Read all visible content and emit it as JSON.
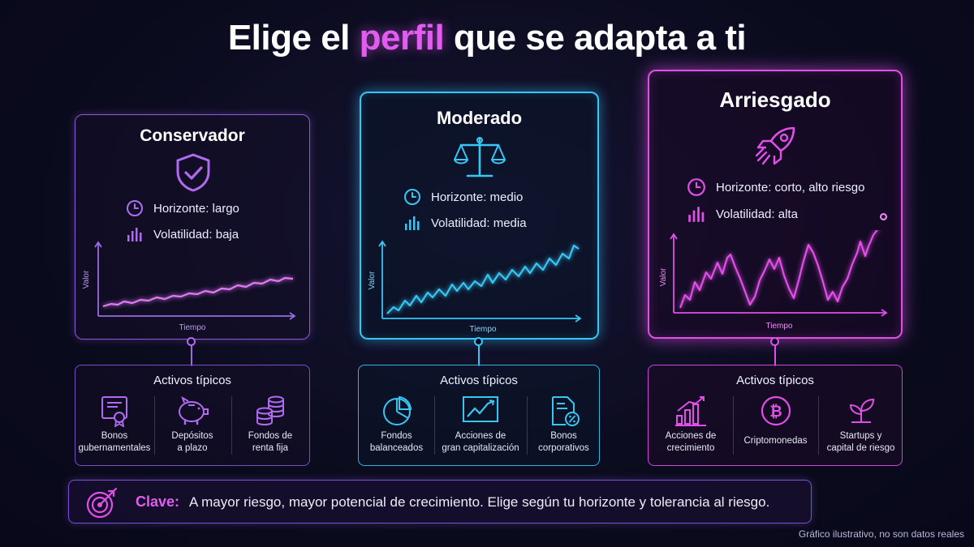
{
  "title": {
    "pre": "Elige el ",
    "highlight": "perfil",
    "post": " que se adapta a ti"
  },
  "colors": {
    "conservador": "#8e5ad6",
    "moderado": "#38c6f5",
    "arriesgado": "#e14ee8",
    "highlight": "#e25cf0"
  },
  "profiles": [
    {
      "name": "Conservador",
      "icon": "shield-check-icon",
      "horizonte": "Horizonte: largo",
      "volatilidad": "Volatilidad: baja",
      "y_label": "Valor",
      "x_label": "Tiempo",
      "assets_title": "Activos típicos",
      "assets": [
        {
          "icon": "certificate-icon",
          "line1": "Bonos",
          "line2": "gubernamentales"
        },
        {
          "icon": "piggy-bank-icon",
          "line1": "Depósitos",
          "line2": "a plazo"
        },
        {
          "icon": "coin-stack-icon",
          "line1": "Fondos de",
          "line2": "renta fija"
        }
      ]
    },
    {
      "name": "Moderado",
      "icon": "balance-scale-icon",
      "horizonte": "Horizonte: medio",
      "volatilidad": "Volatilidad: media",
      "y_label": "Valor",
      "x_label": "Tiempo",
      "assets_title": "Activos típicos",
      "assets": [
        {
          "icon": "pie-chart-icon",
          "line1": "Fondos",
          "line2": "balanceados"
        },
        {
          "icon": "trend-chart-icon",
          "line1": "Acciones de",
          "line2": "gran capitalización"
        },
        {
          "icon": "percent-document-icon",
          "line1": "Bonos",
          "line2": "corporativos"
        }
      ]
    },
    {
      "name": "Arriesgado",
      "icon": "rocket-icon",
      "horizonte": "Horizonte: corto, alto riesgo",
      "volatilidad": "Volatilidad: alta",
      "y_label": "Valor",
      "x_label": "Tiempo",
      "assets_title": "Activos típicos",
      "assets": [
        {
          "icon": "growth-bars-icon",
          "line1": "Acciones de",
          "line2": "crecimiento"
        },
        {
          "icon": "bitcoin-icon",
          "line1": "Criptomonedas",
          "line2": ""
        },
        {
          "icon": "sprout-icon",
          "line1": "Startups y",
          "line2": "capital de riesgo"
        }
      ]
    }
  ],
  "key": {
    "label": "Clave:",
    "text": "A mayor riesgo, mayor potencial de crecimiento. Elige según tu horizonte y tolerancia al riesgo."
  },
  "footnote": "Gráfico ilustrativo, no son datos reales"
}
